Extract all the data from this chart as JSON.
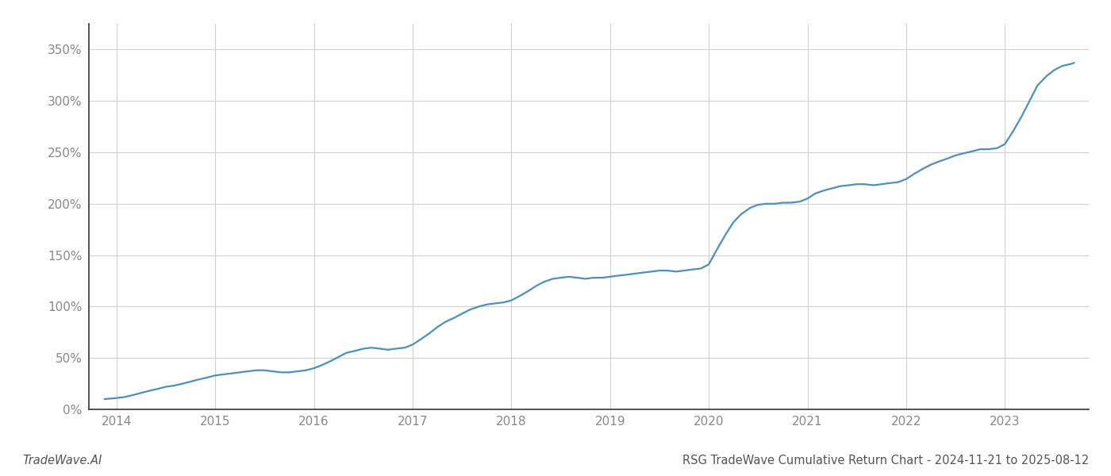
{
  "title": "RSG TradeWave Cumulative Return Chart - 2024-11-21 to 2025-08-12",
  "watermark": "TradeWave.AI",
  "line_color": "#4a90c4",
  "background_color": "#ffffff",
  "grid_color": "#d0d0d0",
  "x_years": [
    2014,
    2015,
    2016,
    2017,
    2018,
    2019,
    2020,
    2021,
    2022,
    2023
  ],
  "data_x": [
    2013.88,
    2014.0,
    2014.08,
    2014.17,
    2014.25,
    2014.33,
    2014.42,
    2014.5,
    2014.58,
    2014.67,
    2014.75,
    2014.83,
    2014.92,
    2015.0,
    2015.08,
    2015.17,
    2015.25,
    2015.33,
    2015.42,
    2015.5,
    2015.58,
    2015.67,
    2015.75,
    2015.83,
    2015.92,
    2016.0,
    2016.08,
    2016.17,
    2016.25,
    2016.33,
    2016.42,
    2016.5,
    2016.58,
    2016.67,
    2016.75,
    2016.83,
    2016.92,
    2017.0,
    2017.08,
    2017.17,
    2017.25,
    2017.33,
    2017.42,
    2017.5,
    2017.58,
    2017.67,
    2017.75,
    2017.83,
    2017.92,
    2018.0,
    2018.08,
    2018.17,
    2018.25,
    2018.33,
    2018.42,
    2018.5,
    2018.58,
    2018.67,
    2018.75,
    2018.83,
    2018.92,
    2019.0,
    2019.08,
    2019.17,
    2019.25,
    2019.33,
    2019.42,
    2019.5,
    2019.58,
    2019.67,
    2019.75,
    2019.83,
    2019.92,
    2020.0,
    2020.08,
    2020.17,
    2020.25,
    2020.33,
    2020.42,
    2020.5,
    2020.58,
    2020.67,
    2020.75,
    2020.83,
    2020.92,
    2021.0,
    2021.08,
    2021.17,
    2021.25,
    2021.33,
    2021.42,
    2021.5,
    2021.58,
    2021.67,
    2021.75,
    2021.83,
    2021.92,
    2022.0,
    2022.08,
    2022.17,
    2022.25,
    2022.33,
    2022.42,
    2022.5,
    2022.58,
    2022.67,
    2022.75,
    2022.83,
    2022.92,
    2023.0,
    2023.08,
    2023.17,
    2023.25,
    2023.33,
    2023.42,
    2023.5,
    2023.58,
    2023.67,
    2023.7
  ],
  "data_y": [
    10,
    11,
    12,
    14,
    16,
    18,
    20,
    22,
    23,
    25,
    27,
    29,
    31,
    33,
    34,
    35,
    36,
    37,
    38,
    38,
    37,
    36,
    36,
    37,
    38,
    40,
    43,
    47,
    51,
    55,
    57,
    59,
    60,
    59,
    58,
    59,
    60,
    63,
    68,
    74,
    80,
    85,
    89,
    93,
    97,
    100,
    102,
    103,
    104,
    106,
    110,
    115,
    120,
    124,
    127,
    128,
    129,
    128,
    127,
    128,
    128,
    129,
    130,
    131,
    132,
    133,
    134,
    135,
    135,
    134,
    135,
    136,
    137,
    141,
    155,
    170,
    182,
    190,
    196,
    199,
    200,
    200,
    201,
    201,
    202,
    205,
    210,
    213,
    215,
    217,
    218,
    219,
    219,
    218,
    219,
    220,
    221,
    224,
    229,
    234,
    238,
    241,
    244,
    247,
    249,
    251,
    253,
    253,
    254,
    258,
    270,
    285,
    300,
    315,
    324,
    330,
    334,
    336,
    337
  ],
  "ylim": [
    0,
    375
  ],
  "yticks": [
    0,
    50,
    100,
    150,
    200,
    250,
    300,
    350
  ],
  "xlim": [
    2013.72,
    2023.85
  ],
  "title_fontsize": 10.5,
  "watermark_fontsize": 10.5,
  "tick_fontsize": 11,
  "line_width": 1.6
}
